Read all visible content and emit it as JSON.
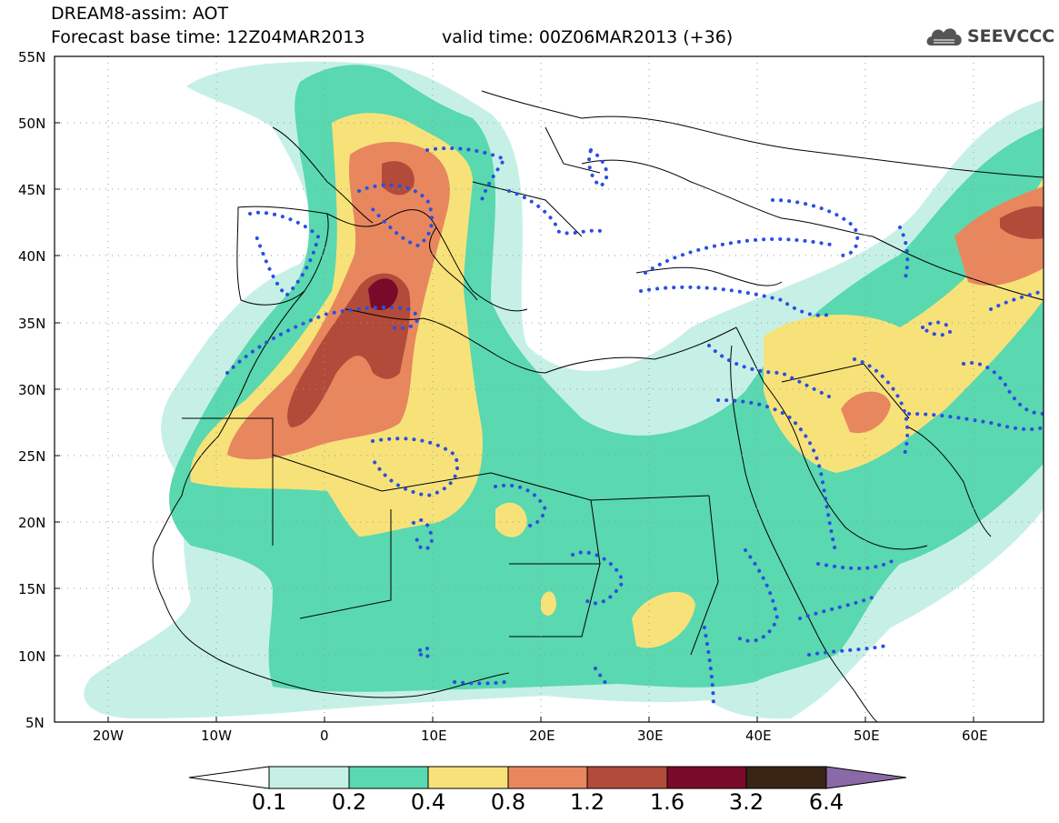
{
  "header": {
    "title_line1": "DREAM8-assim: AOT",
    "title_line2": "Forecast base time: 12Z04MAR2013",
    "title_line3": "valid time: 00Z06MAR2013 (+36)"
  },
  "logo": {
    "text": "SEEVCCC",
    "icon": "cloud-icon"
  },
  "map": {
    "lat_labels": [
      "55N",
      "50N",
      "45N",
      "40N",
      "35N",
      "30N",
      "25N",
      "20N",
      "15N",
      "10N",
      "5N"
    ],
    "lon_labels": [
      "20W",
      "10W",
      "0",
      "10E",
      "20E",
      "30E",
      "40E",
      "50E",
      "60E"
    ],
    "colors": {
      "c1": "#c6f0e6",
      "c2": "#5ad8b0",
      "c3": "#f7e27a",
      "c4": "#e8875e",
      "c5": "#b24b3a",
      "c6": "#7a0a2a",
      "c7": "#3a2414",
      "c8": "#8a6aa6",
      "dots": "#2a4fe0"
    }
  },
  "legend": {
    "labels": [
      "0.1",
      "0.2",
      "0.4",
      "0.8",
      "1.2",
      "1.6",
      "3.2",
      "6.4"
    ],
    "colors": [
      "#c6f0e6",
      "#5ad8b0",
      "#f7e27a",
      "#e8875e",
      "#b24b3a",
      "#7a0a2a",
      "#3a2414"
    ],
    "low_arrow_color": "#ffffff",
    "high_arrow_color": "#8a6aa6"
  }
}
